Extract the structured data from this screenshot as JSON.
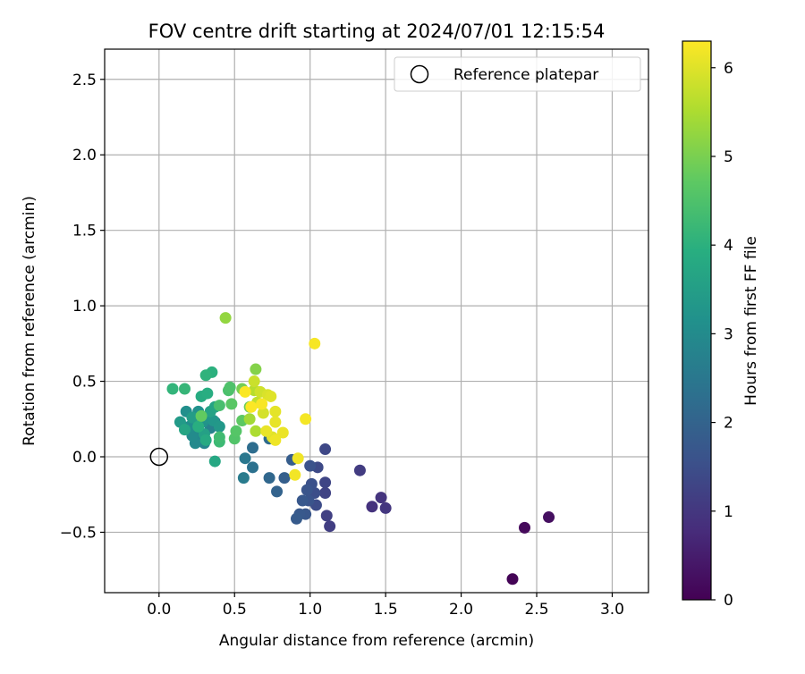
{
  "chart_data": {
    "type": "scatter",
    "title": "FOV centre drift starting at 2024/07/01 12:15:54",
    "xlabel": "Angular distance from reference (arcmin)",
    "ylabel": "Rotation from reference (arcmin)",
    "xlim": [
      -0.36,
      3.24
    ],
    "ylim": [
      -0.9,
      2.7
    ],
    "xticks": [
      0.0,
      0.5,
      1.0,
      1.5,
      2.0,
      2.5,
      3.0
    ],
    "xtick_labels": [
      "0.0",
      "0.5",
      "1.0",
      "1.5",
      "2.0",
      "2.5",
      "3.0"
    ],
    "yticks": [
      -0.5,
      0.0,
      0.5,
      1.0,
      1.5,
      2.0,
      2.5
    ],
    "ytick_labels": [
      "−0.5",
      "0.0",
      "0.5",
      "1.0",
      "1.5",
      "2.0",
      "2.5"
    ],
    "grid": true,
    "legend": {
      "position": "top-right",
      "entries": [
        "Reference platepar"
      ]
    },
    "reference_point": {
      "x": 0.0,
      "y": 0.0,
      "label": "Reference platepar"
    },
    "colorbar": {
      "label": "Hours from first FF file",
      "colormap": "viridis",
      "range": [
        0,
        6.3
      ],
      "ticks": [
        0,
        1,
        2,
        3,
        4,
        5,
        6
      ],
      "tick_labels": [
        "0",
        "1",
        "2",
        "3",
        "4",
        "5",
        "6"
      ]
    },
    "points": [
      {
        "x": 2.34,
        "y": -0.81,
        "h": 0.05
      },
      {
        "x": 2.42,
        "y": -0.47,
        "h": 0.15
      },
      {
        "x": 2.58,
        "y": -0.4,
        "h": 0.25
      },
      {
        "x": 1.41,
        "y": -0.33,
        "h": 0.9
      },
      {
        "x": 1.47,
        "y": -0.27,
        "h": 0.95
      },
      {
        "x": 1.5,
        "y": -0.34,
        "h": 1.0
      },
      {
        "x": 1.33,
        "y": -0.09,
        "h": 1.1
      },
      {
        "x": 1.13,
        "y": -0.46,
        "h": 1.15
      },
      {
        "x": 1.11,
        "y": -0.39,
        "h": 1.2
      },
      {
        "x": 1.1,
        "y": -0.24,
        "h": 1.25
      },
      {
        "x": 1.1,
        "y": -0.17,
        "h": 1.3
      },
      {
        "x": 1.1,
        "y": 0.05,
        "h": 1.35
      },
      {
        "x": 1.05,
        "y": -0.07,
        "h": 1.4
      },
      {
        "x": 1.04,
        "y": -0.32,
        "h": 1.45
      },
      {
        "x": 1.03,
        "y": -0.24,
        "h": 1.5
      },
      {
        "x": 1.01,
        "y": -0.18,
        "h": 1.55
      },
      {
        "x": 1.0,
        "y": -0.06,
        "h": 1.6
      },
      {
        "x": 0.99,
        "y": -0.29,
        "h": 1.62
      },
      {
        "x": 0.98,
        "y": -0.22,
        "h": 1.65
      },
      {
        "x": 0.97,
        "y": -0.38,
        "h": 1.7
      },
      {
        "x": 0.95,
        "y": -0.29,
        "h": 1.72
      },
      {
        "x": 0.93,
        "y": -0.38,
        "h": 1.75
      },
      {
        "x": 0.91,
        "y": -0.41,
        "h": 1.8
      },
      {
        "x": 0.88,
        "y": -0.02,
        "h": 1.85
      },
      {
        "x": 0.83,
        "y": -0.14,
        "h": 1.9
      },
      {
        "x": 0.78,
        "y": -0.23,
        "h": 2.0
      },
      {
        "x": 0.73,
        "y": -0.14,
        "h": 2.1
      },
      {
        "x": 0.73,
        "y": 0.12,
        "h": 2.2
      },
      {
        "x": 0.62,
        "y": 0.06,
        "h": 2.25
      },
      {
        "x": 0.62,
        "y": -0.07,
        "h": 2.35
      },
      {
        "x": 0.57,
        "y": -0.01,
        "h": 2.5
      },
      {
        "x": 0.56,
        "y": -0.14,
        "h": 2.6
      },
      {
        "x": 0.37,
        "y": 0.23,
        "h": 2.7
      },
      {
        "x": 0.34,
        "y": 0.19,
        "h": 2.75
      },
      {
        "x": 0.3,
        "y": 0.09,
        "h": 2.85
      },
      {
        "x": 0.27,
        "y": 0.13,
        "h": 2.9
      },
      {
        "x": 0.24,
        "y": 0.09,
        "h": 2.95
      },
      {
        "x": 0.22,
        "y": 0.14,
        "h": 3.0
      },
      {
        "x": 0.2,
        "y": 0.2,
        "h": 3.05
      },
      {
        "x": 0.18,
        "y": 0.3,
        "h": 3.1
      },
      {
        "x": 0.26,
        "y": 0.3,
        "h": 3.15
      },
      {
        "x": 0.29,
        "y": 0.23,
        "h": 3.2
      },
      {
        "x": 0.32,
        "y": 0.26,
        "h": 3.25
      },
      {
        "x": 0.36,
        "y": 0.24,
        "h": 3.3
      },
      {
        "x": 0.4,
        "y": 0.2,
        "h": 3.35
      },
      {
        "x": 0.14,
        "y": 0.23,
        "h": 3.4
      },
      {
        "x": 0.22,
        "y": 0.26,
        "h": 3.45
      },
      {
        "x": 0.26,
        "y": 0.2,
        "h": 3.5
      },
      {
        "x": 0.3,
        "y": 0.15,
        "h": 3.55
      },
      {
        "x": 0.34,
        "y": 0.3,
        "h": 3.6
      },
      {
        "x": 0.37,
        "y": 0.33,
        "h": 3.65
      },
      {
        "x": 0.17,
        "y": 0.18,
        "h": 3.7
      },
      {
        "x": 0.37,
        "y": -0.03,
        "h": 3.75
      },
      {
        "x": 0.31,
        "y": 0.11,
        "h": 3.8
      },
      {
        "x": 0.28,
        "y": 0.4,
        "h": 3.85
      },
      {
        "x": 0.32,
        "y": 0.42,
        "h": 3.9
      },
      {
        "x": 0.26,
        "y": 0.2,
        "h": 3.95
      },
      {
        "x": 0.35,
        "y": 0.56,
        "h": 4.0
      },
      {
        "x": 0.31,
        "y": 0.54,
        "h": 4.05
      },
      {
        "x": 0.09,
        "y": 0.45,
        "h": 4.1
      },
      {
        "x": 0.17,
        "y": 0.45,
        "h": 4.15
      },
      {
        "x": 0.4,
        "y": 0.1,
        "h": 4.25
      },
      {
        "x": 0.4,
        "y": 0.13,
        "h": 4.3
      },
      {
        "x": 0.4,
        "y": 0.34,
        "h": 4.4
      },
      {
        "x": 0.46,
        "y": 0.44,
        "h": 4.45
      },
      {
        "x": 0.47,
        "y": 0.46,
        "h": 4.5
      },
      {
        "x": 0.5,
        "y": 0.12,
        "h": 4.55
      },
      {
        "x": 0.51,
        "y": 0.17,
        "h": 4.6
      },
      {
        "x": 0.48,
        "y": 0.35,
        "h": 4.65
      },
      {
        "x": 0.55,
        "y": 0.24,
        "h": 4.7
      },
      {
        "x": 0.28,
        "y": 0.27,
        "h": 4.75
      },
      {
        "x": 0.6,
        "y": 0.33,
        "h": 4.85
      },
      {
        "x": 0.55,
        "y": 0.45,
        "h": 4.95
      },
      {
        "x": 0.64,
        "y": 0.58,
        "h": 5.1
      },
      {
        "x": 0.44,
        "y": 0.92,
        "h": 5.25
      },
      {
        "x": 0.6,
        "y": 0.25,
        "h": 5.4
      },
      {
        "x": 0.64,
        "y": 0.17,
        "h": 5.5
      },
      {
        "x": 0.63,
        "y": 0.44,
        "h": 5.6
      },
      {
        "x": 0.65,
        "y": 0.36,
        "h": 5.7
      },
      {
        "x": 0.63,
        "y": 0.5,
        "h": 5.8
      },
      {
        "x": 0.67,
        "y": 0.43,
        "h": 5.85
      },
      {
        "x": 0.69,
        "y": 0.29,
        "h": 5.9
      },
      {
        "x": 0.72,
        "y": 0.41,
        "h": 5.95
      },
      {
        "x": 0.74,
        "y": 0.4,
        "h": 6.0
      },
      {
        "x": 0.75,
        "y": 0.13,
        "h": 6.02
      },
      {
        "x": 0.77,
        "y": 0.3,
        "h": 6.05
      },
      {
        "x": 0.77,
        "y": 0.23,
        "h": 6.08
      },
      {
        "x": 0.71,
        "y": 0.17,
        "h": 6.1
      },
      {
        "x": 0.82,
        "y": 0.16,
        "h": 6.12
      },
      {
        "x": 0.77,
        "y": 0.11,
        "h": 6.15
      },
      {
        "x": 0.92,
        "y": -0.01,
        "h": 6.17
      },
      {
        "x": 0.9,
        "y": -0.12,
        "h": 6.19
      },
      {
        "x": 0.97,
        "y": 0.25,
        "h": 6.21
      },
      {
        "x": 1.03,
        "y": 0.75,
        "h": 6.23
      },
      {
        "x": 0.68,
        "y": 0.35,
        "h": 6.25
      },
      {
        "x": 0.57,
        "y": 0.43,
        "h": 6.27
      },
      {
        "x": 0.61,
        "y": 0.33,
        "h": 6.28
      }
    ]
  }
}
